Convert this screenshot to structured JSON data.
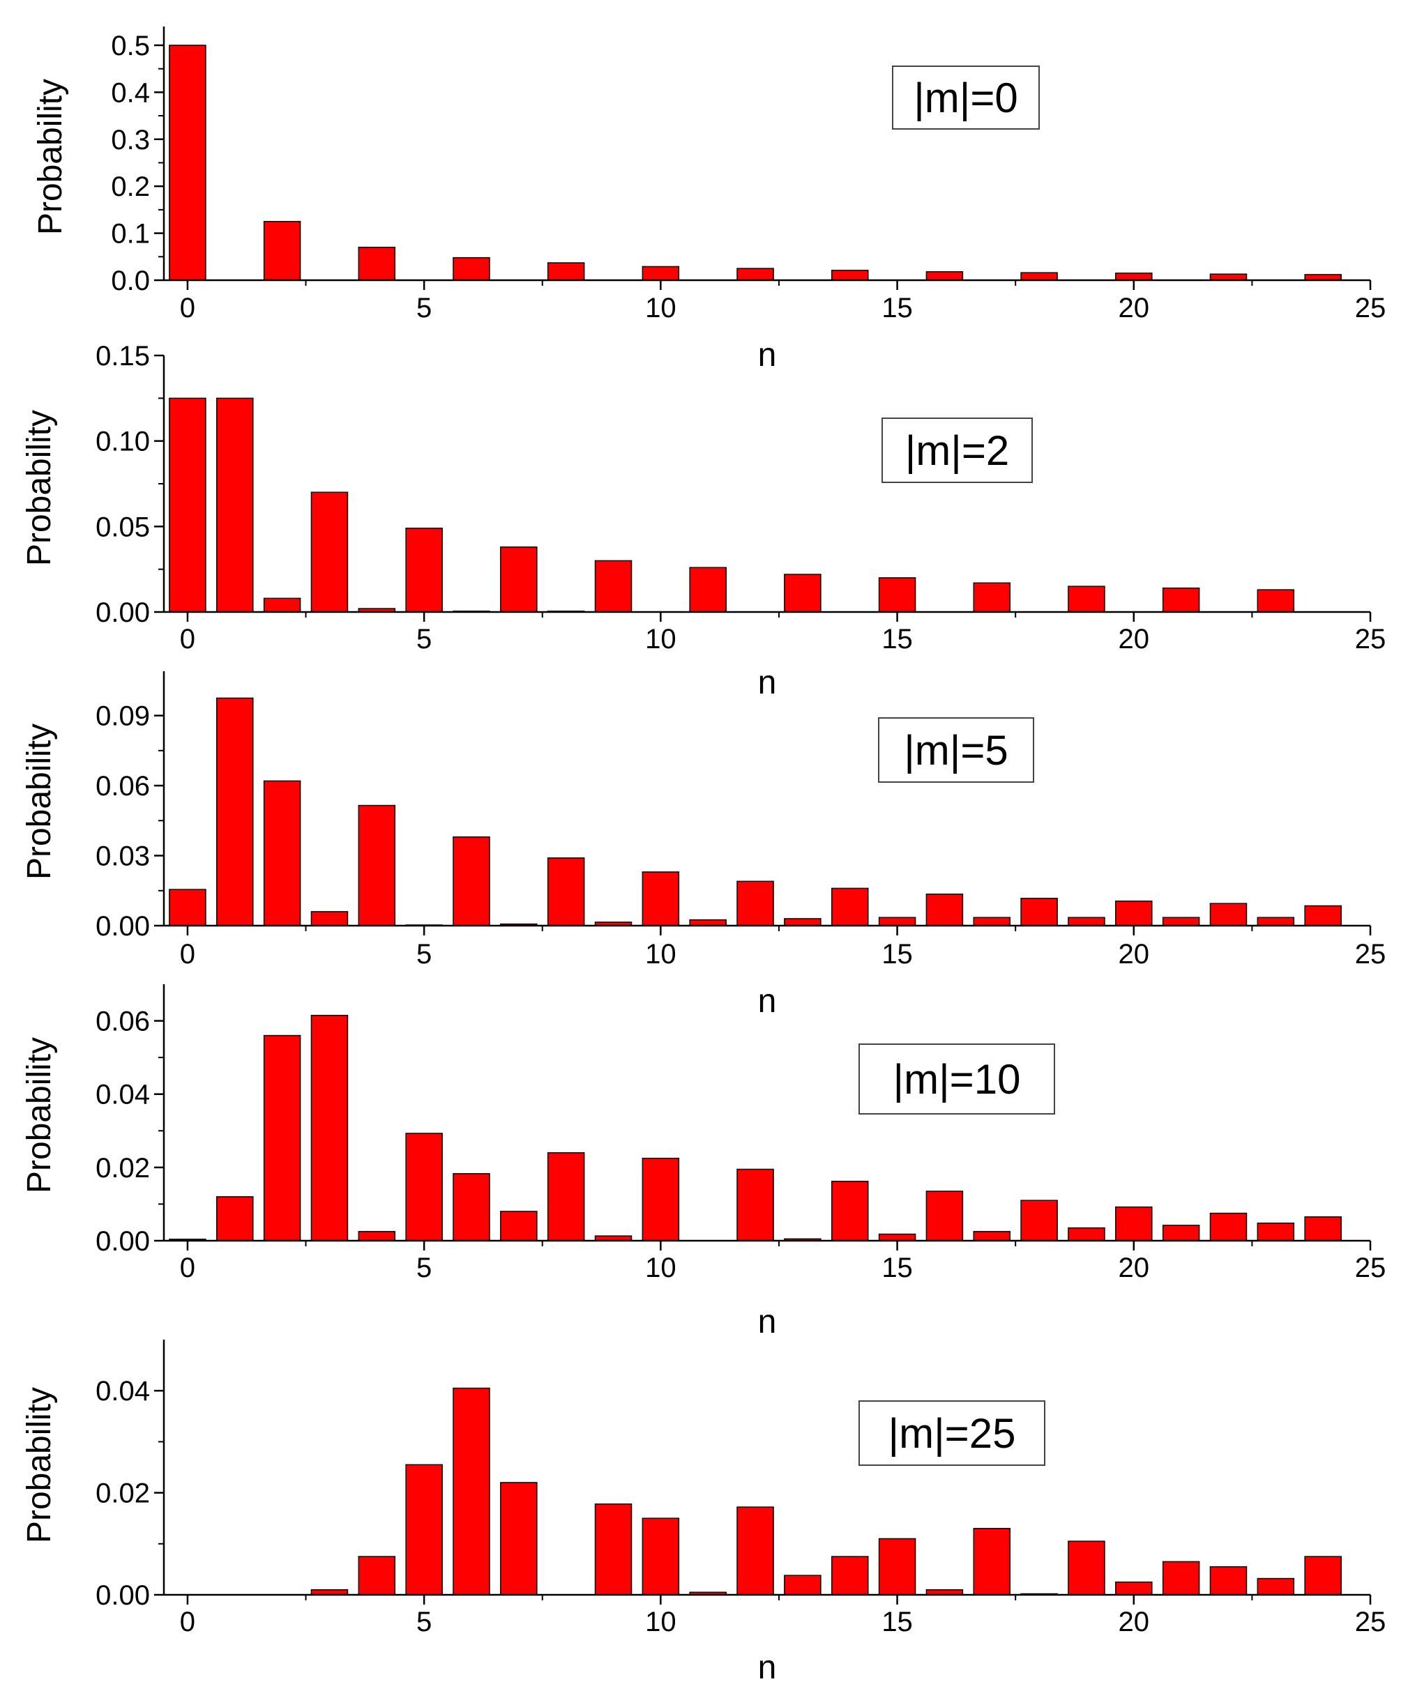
{
  "figure": {
    "panels_count": 5
  },
  "chart_data": [
    {
      "type": "bar",
      "legend": "|m|=0",
      "xlabel": "n",
      "ylabel": "Probability",
      "xlim": [
        -0.5,
        25
      ],
      "ylim": [
        0,
        0.54
      ],
      "xticks": [
        "0",
        "5",
        "10",
        "15",
        "20",
        "25"
      ],
      "yticks": [
        "0.0",
        "0.1",
        "0.2",
        "0.3",
        "0.4",
        "0.5"
      ],
      "ytick_values": [
        0,
        0.1,
        0.2,
        0.3,
        0.4,
        0.5
      ],
      "series": [
        {
          "name": "Probability",
          "color": "#ff0000",
          "x": [
            0,
            2,
            4,
            6,
            8,
            10,
            12,
            14,
            16,
            18,
            20,
            22,
            24
          ],
          "values": [
            0.5,
            0.125,
            0.07,
            0.048,
            0.037,
            0.029,
            0.025,
            0.021,
            0.018,
            0.016,
            0.015,
            0.013,
            0.012
          ]
        }
      ]
    },
    {
      "type": "bar",
      "legend": "|m|=2",
      "xlabel": "n",
      "ylabel": "Probability",
      "xlim": [
        -0.5,
        25
      ],
      "ylim": [
        0,
        0.15
      ],
      "xticks": [
        "0",
        "5",
        "10",
        "15",
        "20",
        "25"
      ],
      "yticks": [
        "0.00",
        "0.05",
        "0.10",
        "0.15"
      ],
      "ytick_values": [
        0,
        0.05,
        0.1,
        0.15
      ],
      "series": [
        {
          "name": "Probability",
          "color": "#ff0000",
          "x": [
            0,
            1,
            2,
            3,
            4,
            5,
            6,
            7,
            8,
            9,
            11,
            13,
            15,
            17,
            19,
            21,
            23
          ],
          "values": [
            0.125,
            0.125,
            0.008,
            0.07,
            0.002,
            0.049,
            0.0005,
            0.038,
            0.0005,
            0.03,
            0.026,
            0.022,
            0.02,
            0.017,
            0.015,
            0.014,
            0.013
          ]
        }
      ]
    },
    {
      "type": "bar",
      "legend": "|m|=5",
      "xlabel": "n",
      "ylabel": "Probability",
      "xlim": [
        -0.5,
        25
      ],
      "ylim": [
        0,
        0.109
      ],
      "xticks": [
        "0",
        "5",
        "10",
        "15",
        "20",
        "25"
      ],
      "yticks": [
        "0.00",
        "0.03",
        "0.06",
        "0.09"
      ],
      "ytick_values": [
        0,
        0.03,
        0.06,
        0.09
      ],
      "series": [
        {
          "name": "Probability",
          "color": "#ff0000",
          "x": [
            0,
            1,
            2,
            3,
            4,
            5,
            6,
            7,
            8,
            9,
            10,
            11,
            12,
            13,
            14,
            15,
            16,
            17,
            18,
            19,
            20,
            21,
            22,
            23,
            24
          ],
          "values": [
            0.0155,
            0.0975,
            0.062,
            0.006,
            0.0515,
            0.0,
            0.038,
            0.0007,
            0.029,
            0.0015,
            0.023,
            0.0025,
            0.019,
            0.003,
            0.016,
            0.0035,
            0.0135,
            0.0035,
            0.0117,
            0.0035,
            0.0105,
            0.0035,
            0.0095,
            0.0035,
            0.0085
          ]
        }
      ]
    },
    {
      "type": "bar",
      "legend": "|m|=10",
      "xlabel": "n",
      "ylabel": "Probability",
      "xlim": [
        -0.5,
        25
      ],
      "ylim": [
        0,
        0.07
      ],
      "xticks": [
        "0",
        "5",
        "10",
        "15",
        "20",
        "25"
      ],
      "yticks": [
        "0.00",
        "0.02",
        "0.04",
        "0.06"
      ],
      "ytick_values": [
        0,
        0.02,
        0.04,
        0.06
      ],
      "series": [
        {
          "name": "Probability",
          "color": "#ff0000",
          "x": [
            0,
            1,
            2,
            3,
            4,
            5,
            6,
            7,
            8,
            9,
            10,
            12,
            13,
            14,
            15,
            16,
            17,
            18,
            19,
            20,
            21,
            22,
            23,
            24
          ],
          "values": [
            0.0004,
            0.012,
            0.056,
            0.0615,
            0.0025,
            0.0293,
            0.0183,
            0.008,
            0.024,
            0.0013,
            0.0225,
            0.0195,
            0.0005,
            0.0162,
            0.0018,
            0.0135,
            0.0025,
            0.011,
            0.0035,
            0.0092,
            0.0042,
            0.0075,
            0.0048,
            0.0065
          ]
        }
      ]
    },
    {
      "type": "bar",
      "legend": "|m|=25",
      "xlabel": "n",
      "ylabel": "Probability",
      "xlim": [
        -0.5,
        25
      ],
      "ylim": [
        0,
        0.05
      ],
      "xticks": [
        "0",
        "5",
        "10",
        "15",
        "20",
        "25"
      ],
      "yticks": [
        "0.00",
        "0.02",
        "0.04"
      ],
      "ytick_values": [
        0,
        0.02,
        0.04
      ],
      "series": [
        {
          "name": "Probability",
          "color": "#ff0000",
          "x": [
            3,
            4,
            5,
            6,
            7,
            9,
            10,
            11,
            12,
            13,
            14,
            15,
            16,
            17,
            18,
            19,
            20,
            21,
            22,
            23,
            24
          ],
          "values": [
            0.001,
            0.0075,
            0.0255,
            0.0405,
            0.022,
            0.0178,
            0.015,
            0.0005,
            0.0172,
            0.0038,
            0.0075,
            0.011,
            0.001,
            0.013,
            0.0002,
            0.0105,
            0.0025,
            0.0065,
            0.0055,
            0.0032,
            0.0075
          ]
        }
      ]
    }
  ]
}
